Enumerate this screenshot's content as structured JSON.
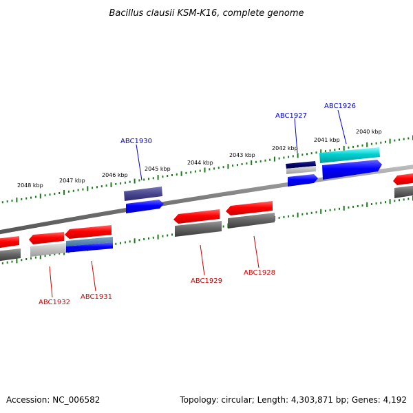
{
  "title": "Bacillus clausii KSM-K16, complete genome",
  "footer": {
    "accession": "Accession: NC_006582",
    "summary": "Topology: circular; Length: 4,303,871 bp; Genes: 4,192"
  },
  "colors": {
    "forward_label": "#0000cc",
    "reverse_label": "#cc0000",
    "tick": "#1a7a1a",
    "backbone": "#8a8a8a"
  },
  "kbp_labels": [
    "2040 kbp",
    "2041 kbp",
    "2042 kbp",
    "2043 kbp",
    "2044 kbp",
    "2045 kbp",
    "2046 kbp",
    "2047 kbp",
    "2048 kbp"
  ],
  "forward_genes": [
    {
      "name": "ABC1926"
    },
    {
      "name": "ABC1927"
    },
    {
      "name": "ABC1930"
    }
  ],
  "reverse_genes": [
    {
      "name": "ABC1928"
    },
    {
      "name": "ABC1929"
    },
    {
      "name": "ABC1931"
    },
    {
      "name": "ABC1932"
    }
  ]
}
